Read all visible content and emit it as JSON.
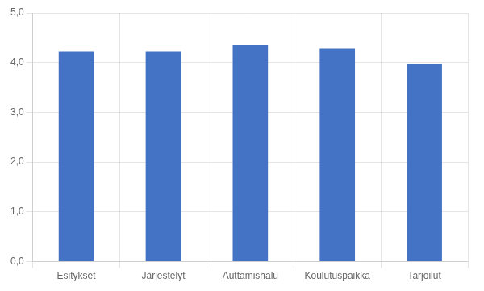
{
  "chart_data": {
    "type": "bar",
    "categories": [
      "Esitykset",
      "Järjestelyt",
      "Auttamishalu",
      "Koulutuspaikka",
      "Tarjoilut"
    ],
    "values": [
      4.23,
      4.23,
      4.35,
      4.28,
      3.97
    ],
    "color": "#4472C4",
    "ylim": [
      0.0,
      5.0
    ],
    "yticks": [
      {
        "value": 0.0,
        "label": "0,0"
      },
      {
        "value": 1.0,
        "label": "1,0"
      },
      {
        "value": 2.0,
        "label": "2,0"
      },
      {
        "value": 3.0,
        "label": "3,0"
      },
      {
        "value": 4.0,
        "label": "4,0"
      },
      {
        "value": 5.0,
        "label": "5,0"
      }
    ],
    "grid": true
  }
}
